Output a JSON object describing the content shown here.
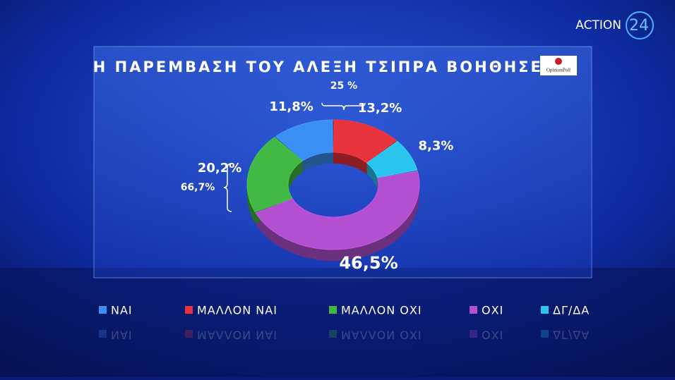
{
  "chart_data": {
    "type": "pie",
    "title": "Η ΠΑΡΕΜΒΑΣΗ ΤΟΥ ΑΛΕΞΗ ΤΣΙΠΡΑ ΒΟΗΘΗΣΕ;",
    "categories": [
      "ΝΑΙ",
      "ΜΑΛΛΟΝ ΝΑΙ",
      "ΜΑΛΛΟΝ ΟΧΙ",
      "ΟΧΙ",
      "ΔΓ/ΔΑ"
    ],
    "values": [
      11.8,
      13.2,
      20.2,
      46.5,
      8.3
    ],
    "value_labels": [
      "11,8%",
      "13,2%",
      "20,2%",
      "46,5%",
      "8,3%"
    ],
    "colors": [
      "#3b8ef2",
      "#e8323c",
      "#41b843",
      "#b350d2",
      "#2ac4ec"
    ],
    "annotations": [
      "25 %",
      "66,7%"
    ],
    "channel_logo": [
      "ACTION",
      "24"
    ],
    "pollster": "OpinionPoll"
  }
}
